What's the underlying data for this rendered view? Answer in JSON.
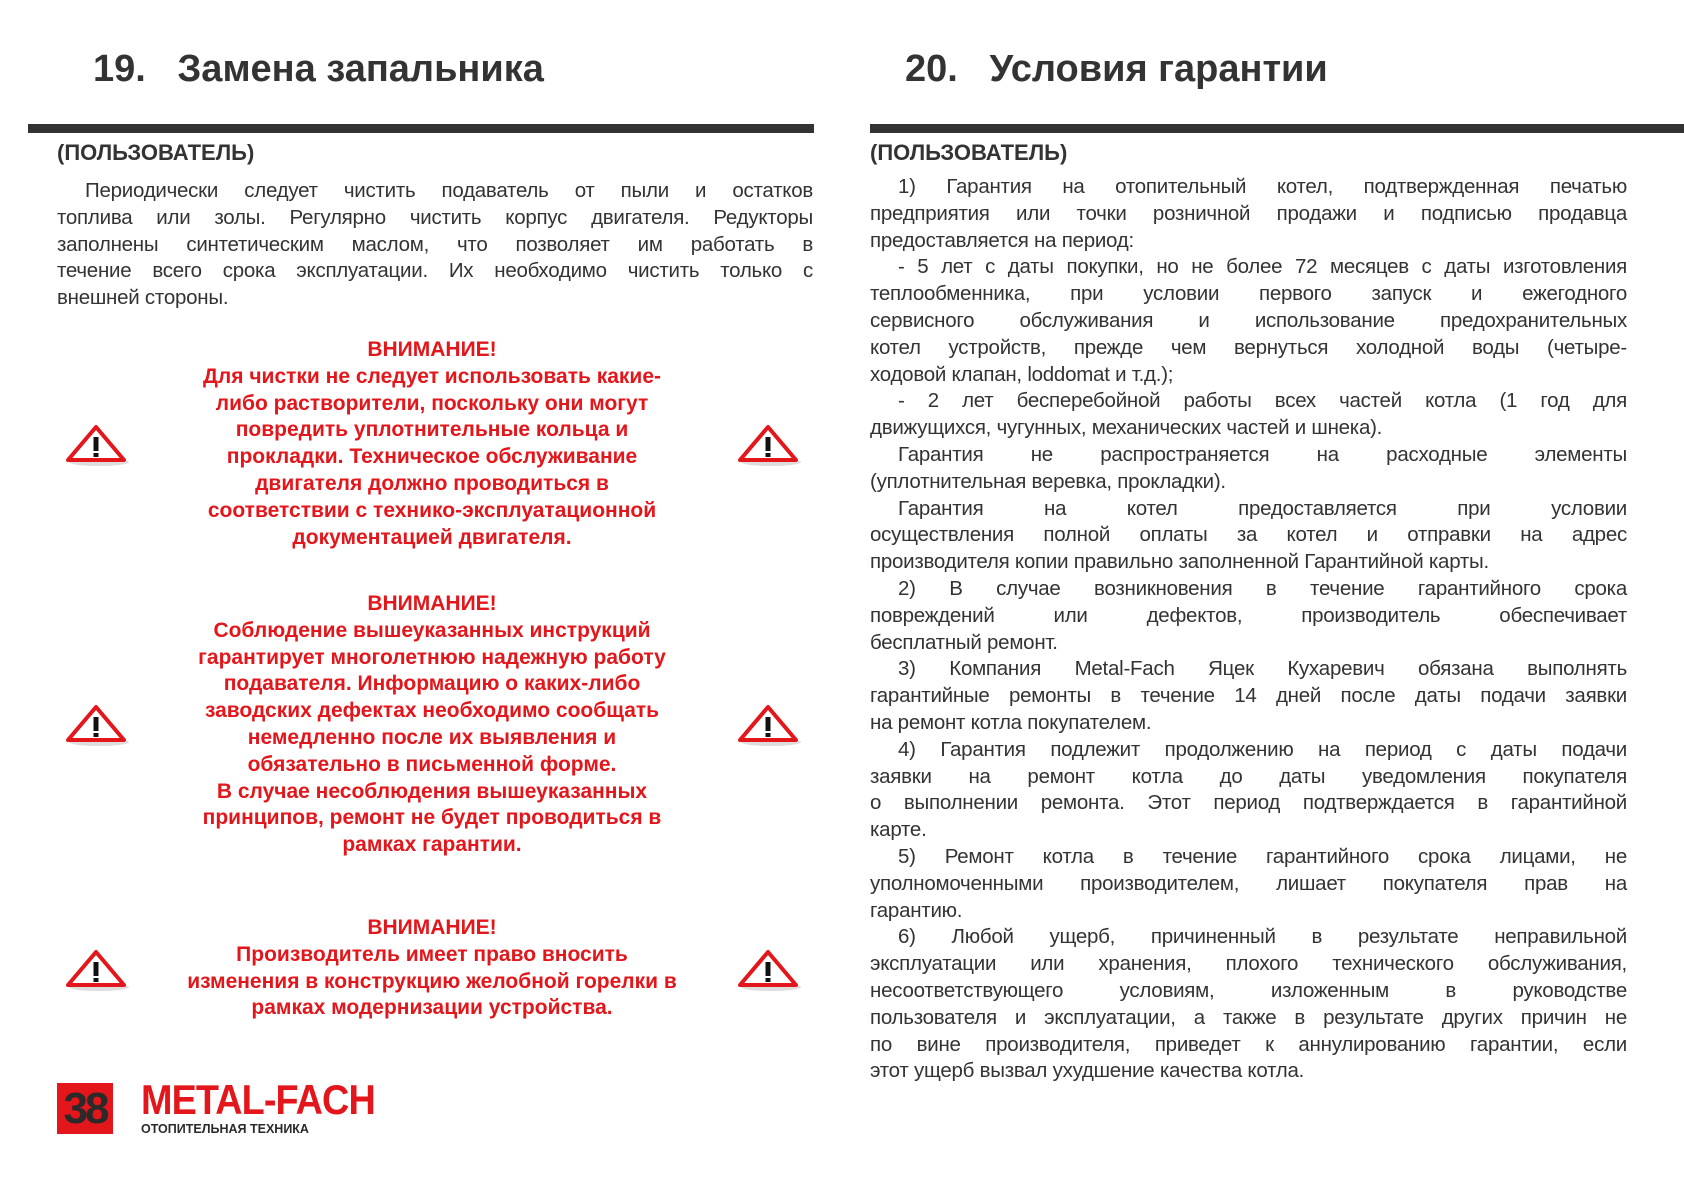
{
  "left": {
    "title": "19.   Замена запальника",
    "role": "(ПОЛЬЗОВАТЕЛЬ)",
    "paragraph": [
      "Периодически следует чистить подаватель от пыли и остатков",
      "топлива или золы. Регулярно чистить корпус двигателя. Редукторы",
      "заполнены синтетическим маслом, что позволяет им работать в",
      "течение всего срока эксплуатации. Их необходимо чистить только с",
      "внешней стороны."
    ],
    "warnings": [
      {
        "heading": "ВНИМАНИЕ!",
        "lines": [
          "Для чистки не следует использовать какие-",
          "либо растворители, поскольку они могут",
          "повредить уплотнительные кольца и",
          "прокладки. Техническое обслуживание",
          "двигателя должно проводиться в",
          "соответствии с технико-эксплуатационной",
          "документацией двигателя."
        ]
      },
      {
        "heading": "ВНИМАНИЕ!",
        "lines": [
          "Соблюдение вышеуказанных инструкций",
          "гарантирует многолетнюю надежную работу",
          "подавателя. Информацию о каких-либо",
          "заводских дефектах необходимо сообщать",
          "немедленно после их выявления и",
          "обязательно в письменной форме.",
          "В случае несоблюдения вышеуказанных",
          "принципов, ремонт не будет проводиться в",
          "рамках гарантии."
        ]
      },
      {
        "heading": "ВНИМАНИЕ!",
        "lines": [
          "Производитель имеет право вносить",
          "изменения в конструкцию желобной горелки в",
          "рамках модернизации устройства."
        ]
      }
    ],
    "warning_icon": "warning-triangle-icon"
  },
  "right": {
    "title": "20.   Условия гарантии",
    "role": "(ПОЛЬЗОВАТЕЛЬ)",
    "paragraphs": [
      [
        "1) Гарантия на отопительный котел, подтвержденная печатью",
        "предприятия или точки розничной продажи и подписью продавца",
        "предоставляется на период:"
      ],
      [
        "- 5 лет с даты покупки, но не более 72 месяцев с даты изготовления",
        "теплообменника, при условии первого запуск и ежегодного",
        "сервисного обслуживания и использование предохранительных",
        "котел устройств, прежде чем вернуться холодной воды (четыре-",
        "ходовой клапан, loddomat и т.д.);"
      ],
      [
        "- 2 лет бесперебойной работы всех частей котла (1 год для",
        "движущихся, чугунных, механических частей и шнека)."
      ],
      [
        "Гарантия не распространяется на расходные элементы",
        "(уплотнительная веревка, прокладки)."
      ],
      [
        "Гарантия на котел предоставляется при условии",
        "осуществления полной оплаты за котел и отправки на адрес",
        "производителя копии правильно заполненной Гарантийной карты."
      ],
      [
        "2) В случае возникновения в течение гарантийного срока",
        "повреждений или дефектов, производитель обеспечивает",
        "бесплатный ремонт."
      ],
      [
        "3) Компания Metal-Fach Яцек Кухаревич обязана выполнять",
        "гарантийные ремонты в течение 14 дней после даты подачи заявки",
        "на ремонт котла покупателем."
      ],
      [
        "4) Гарантия подлежит продолжению на период с даты подачи",
        "заявки на ремонт котла до даты уведомления покупателя",
        "о выполнении ремонта. Этот период подтверждается в гарантийной",
        "карте."
      ],
      [
        "5) Ремонт котла в течение гарантийного срока лицами, не",
        "уполномоченными производителем, лишает покупателя прав на",
        "гарантию."
      ],
      [
        "6) Любой ущерб, причиненный в результате неправильной",
        "эксплуатации или хранения, плохого технического обслуживания,",
        "несоответствующего условиям, изложенным в руководстве",
        "пользователя и эксплуатации, а также в результате других причин не",
        "по вине производителя, приведет к аннулированию гарантии, если",
        "этот ущерб вызвал ухудшение качества котла."
      ]
    ]
  },
  "footer": {
    "page_number": "38",
    "brand": "METAL-FACH",
    "brand_tagline": "ОТОПИТЕЛЬНАЯ ТЕХНИКА"
  },
  "colors": {
    "accent": "#e3161b",
    "text": "#333333"
  }
}
